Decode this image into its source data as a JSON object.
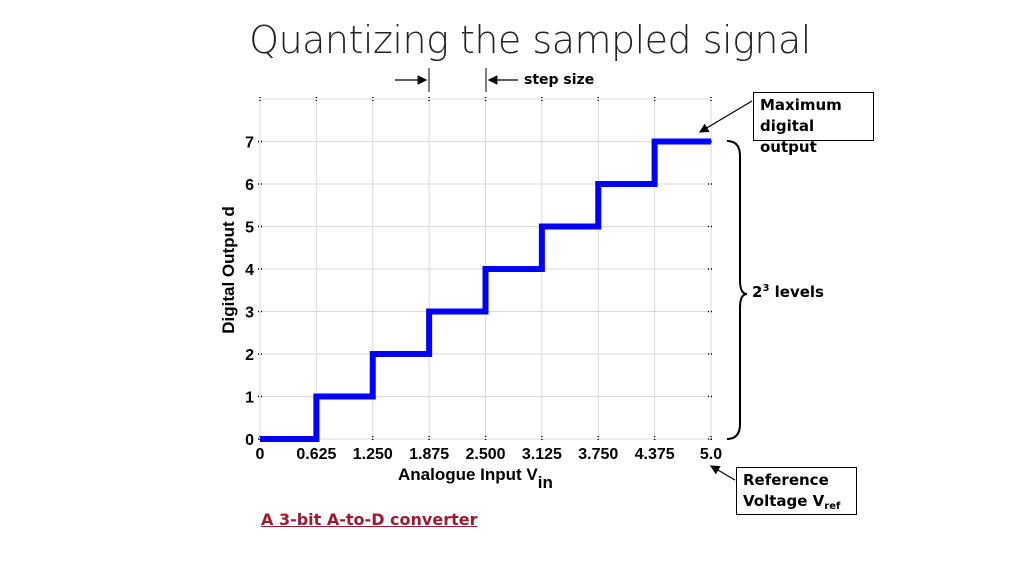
{
  "slide": {
    "title": "Quantizing the sampled signal",
    "caption": "A 3-bit A-to-D converter"
  },
  "annotations": {
    "step_size": "step size",
    "max_output": {
      "line1": "Maximum",
      "line2": "digital output"
    },
    "levels": {
      "base": "2",
      "exponent": "3",
      "suffix": " levels"
    },
    "reference": {
      "line1": "Reference",
      "line2_main": "Voltage V",
      "line2_sub": "ref"
    }
  },
  "colors": {
    "series": "#0000ff",
    "grid": "#d9d9d9",
    "caption": "#9b1b30"
  },
  "chart_data": {
    "type": "line",
    "step": "post",
    "xlabel": "Analogue Input V",
    "xlabel_sub": "in",
    "ylabel": "Digital Output d",
    "xlim": [
      0,
      5.0
    ],
    "ylim": [
      0,
      8
    ],
    "xticks": [
      0,
      0.625,
      1.25,
      1.875,
      2.5,
      3.125,
      3.75,
      4.375,
      5.0
    ],
    "xtick_labels": [
      "0",
      "0.625",
      "1.250",
      "1.875",
      "2.500",
      "3.125",
      "3.750",
      "4.375",
      "5.0"
    ],
    "yticks": [
      0,
      1,
      2,
      3,
      4,
      5,
      6,
      7
    ],
    "ytick_labels": [
      "0",
      "1",
      "2",
      "3",
      "4",
      "5",
      "6",
      "7"
    ],
    "grid": true,
    "series": [
      {
        "x": [
          0,
          0.625,
          1.25,
          1.875,
          2.5,
          3.125,
          3.75,
          4.375,
          5.0
        ],
        "y": [
          0,
          1,
          2,
          3,
          4,
          5,
          6,
          7,
          7
        ]
      }
    ]
  }
}
